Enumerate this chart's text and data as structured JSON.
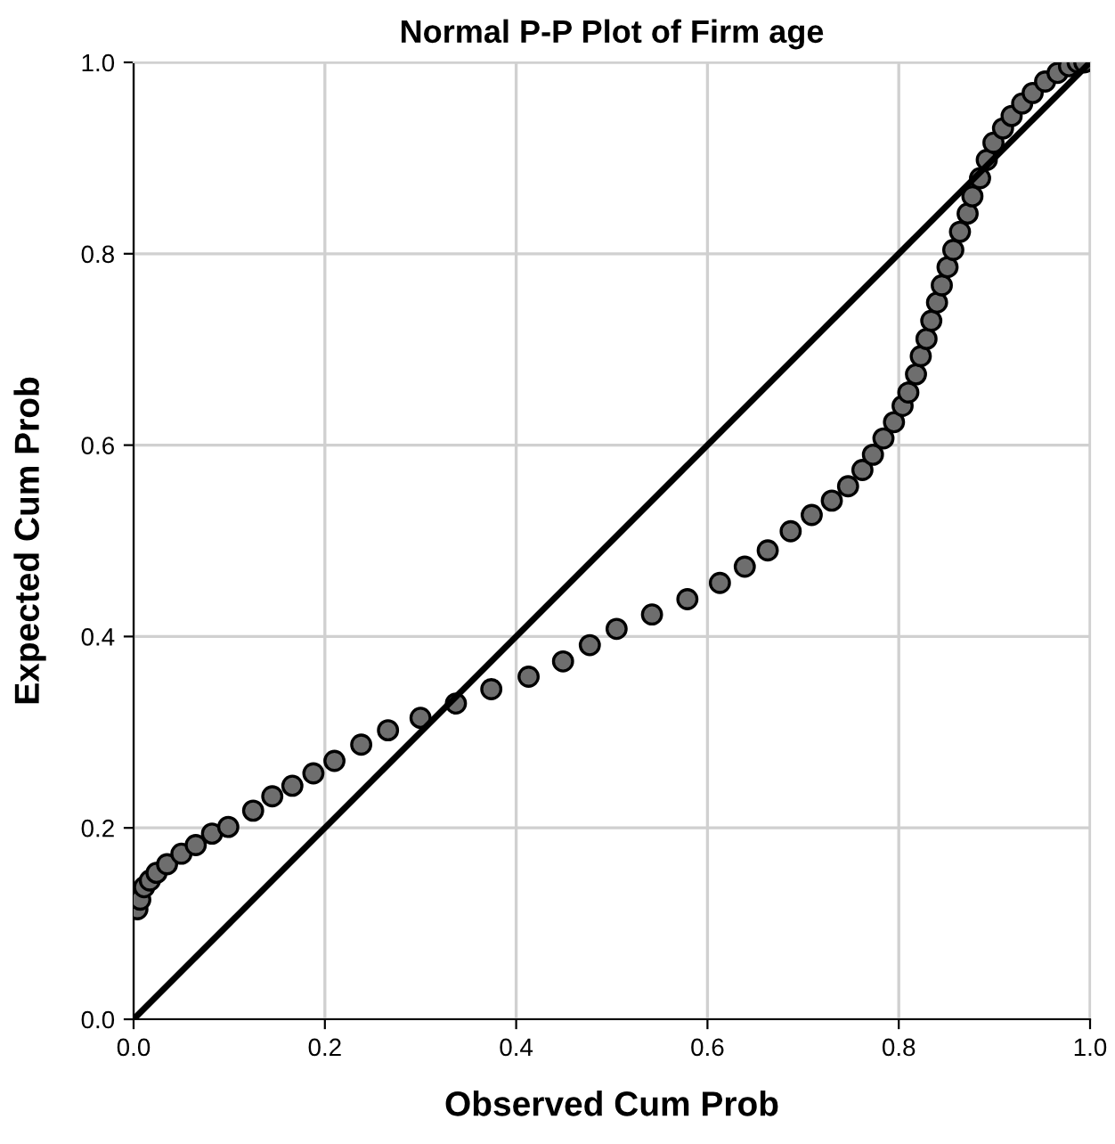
{
  "chart_data": {
    "type": "scatter",
    "title": "Normal P-P Plot of Firm age",
    "xlabel": "Observed Cum Prob",
    "ylabel": "Expected Cum Prob",
    "xlim": [
      0,
      1
    ],
    "ylim": [
      0,
      1
    ],
    "xticks": [
      {
        "value": 0,
        "label": "0.0"
      },
      {
        "value": 0.2,
        "label": "0.2"
      },
      {
        "value": 0.4,
        "label": "0.4"
      },
      {
        "value": 0.6,
        "label": "0.6"
      },
      {
        "value": 0.8,
        "label": "0.8"
      },
      {
        "value": 1,
        "label": "1.0"
      }
    ],
    "yticks": [
      {
        "value": 0,
        "label": "0.0"
      },
      {
        "value": 0.2,
        "label": "0.2"
      },
      {
        "value": 0.4,
        "label": "0.4"
      },
      {
        "value": 0.6,
        "label": "0.6"
      },
      {
        "value": 0.8,
        "label": "0.8"
      },
      {
        "value": 1,
        "label": "1.0"
      }
    ],
    "grid": true,
    "marker": "circle",
    "series": [
      {
        "color": "#6e6e6e",
        "x": [
          0.004,
          0.007,
          0.011,
          0.017,
          0.024,
          0.035,
          0.05,
          0.065,
          0.082,
          0.099,
          0.125,
          0.145,
          0.166,
          0.188,
          0.21,
          0.238,
          0.266,
          0.3,
          0.337,
          0.374,
          0.413,
          0.449,
          0.477,
          0.505,
          0.542,
          0.579,
          0.613,
          0.639,
          0.663,
          0.687,
          0.709,
          0.73,
          0.747,
          0.762,
          0.773,
          0.784,
          0.795,
          0.804,
          0.81,
          0.818,
          0.823,
          0.829,
          0.834,
          0.84,
          0.845,
          0.851,
          0.857,
          0.864,
          0.872,
          0.877,
          0.885,
          0.892,
          0.899,
          0.909,
          0.918,
          0.929,
          0.94,
          0.953,
          0.966,
          0.978,
          0.987,
          0.994
        ],
        "values": [
          0.115,
          0.125,
          0.138,
          0.145,
          0.153,
          0.162,
          0.173,
          0.182,
          0.194,
          0.201,
          0.218,
          0.233,
          0.244,
          0.257,
          0.27,
          0.287,
          0.302,
          0.315,
          0.33,
          0.345,
          0.358,
          0.374,
          0.391,
          0.408,
          0.423,
          0.439,
          0.456,
          0.473,
          0.49,
          0.51,
          0.527,
          0.542,
          0.557,
          0.574,
          0.59,
          0.607,
          0.624,
          0.641,
          0.655,
          0.674,
          0.693,
          0.711,
          0.73,
          0.749,
          0.767,
          0.786,
          0.804,
          0.823,
          0.842,
          0.86,
          0.879,
          0.898,
          0.916,
          0.931,
          0.944,
          0.957,
          0.968,
          0.98,
          0.989,
          0.996,
          1.0,
          1.0
        ]
      },
      {
        "type": "line",
        "color": "#000000",
        "x": [
          0,
          1
        ],
        "values": [
          0,
          1
        ],
        "marker": "none",
        "line_style": "solid"
      }
    ]
  }
}
